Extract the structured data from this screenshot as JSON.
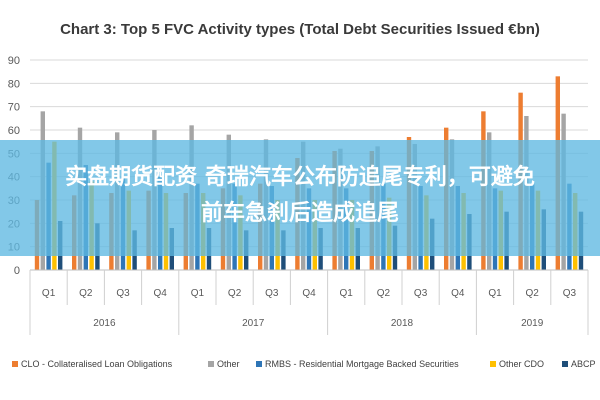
{
  "chart_data": {
    "type": "bar",
    "title": "Chart 3: Top 5 FVC Activity types (Total Debt Securities Issued €bn)",
    "xlabel": "",
    "ylabel": "",
    "ylim": [
      0,
      90
    ],
    "yticks": [
      "0",
      "10",
      "20",
      "30",
      "40",
      "50",
      "60",
      "70",
      "80",
      "90"
    ],
    "grid": true,
    "legend_position": "bottom",
    "categories": [
      "Q1",
      "Q2",
      "Q3",
      "Q4",
      "Q1",
      "Q2",
      "Q3",
      "Q4",
      "Q1",
      "Q2",
      "Q3",
      "Q4",
      "Q1",
      "Q2",
      "Q3"
    ],
    "year_groups": [
      {
        "label": "2016",
        "span": 4
      },
      {
        "label": "2017",
        "span": 4
      },
      {
        "label": "2018",
        "span": 4
      },
      {
        "label": "2019",
        "span": 3
      }
    ],
    "series": [
      {
        "name": "CLO - Collateralised Loan Obligations",
        "color": "#ed7d31",
        "values": [
          30,
          32,
          33,
          34,
          33,
          35,
          37,
          48,
          51,
          51,
          57,
          61,
          68,
          76,
          83
        ]
      },
      {
        "name": "Other",
        "color": "#a5a5a5",
        "values": [
          68,
          61,
          59,
          60,
          62,
          58,
          56,
          55,
          52,
          53,
          54,
          56,
          59,
          66,
          67
        ]
      },
      {
        "name": "RMBS - Residential Mortgage Backed Securities",
        "color": "#2e75b6",
        "values": [
          46,
          45,
          40,
          40,
          37,
          37,
          36,
          35,
          35,
          37,
          36,
          36,
          35,
          37,
          37
        ]
      },
      {
        "name": "Other CDO",
        "color": "#ffc000",
        "values": [
          55,
          38,
          34,
          33,
          33,
          32,
          30,
          30,
          30,
          31,
          32,
          33,
          34,
          34,
          33
        ]
      },
      {
        "name": "ABCP",
        "color": "#1f4e79",
        "values": [
          21,
          20,
          17,
          18,
          18,
          17,
          17,
          18,
          18,
          19,
          22,
          24,
          25,
          26,
          25
        ]
      }
    ]
  },
  "overlay": {
    "line1": "实盘期货配资 奇瑞汽车公布防追尾专利，可避免",
    "line2": "前车急刹后造成追尾"
  }
}
